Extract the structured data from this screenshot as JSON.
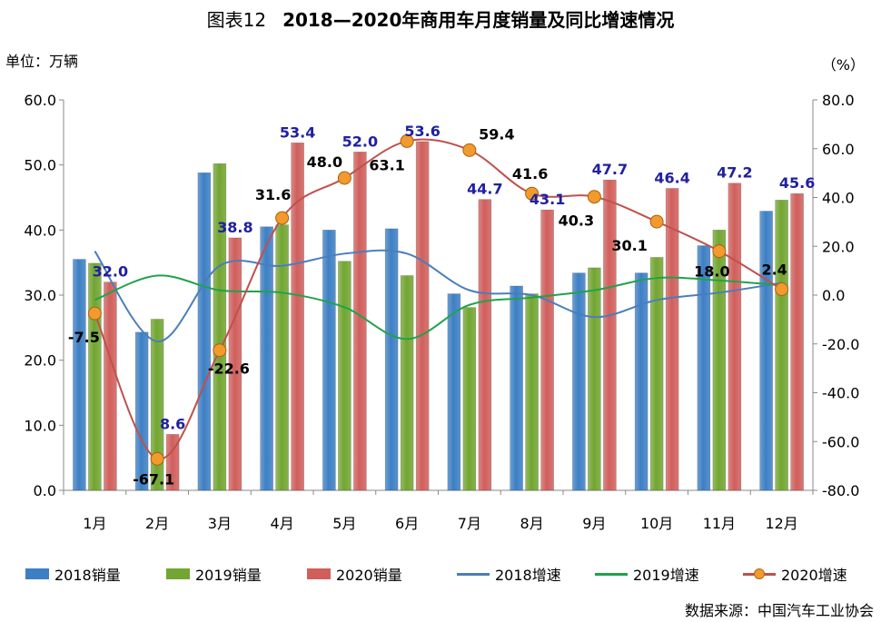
{
  "header": {
    "figure_label": "图表12",
    "title": "2018—2020年商用车月度销量及同比增速情况"
  },
  "left_unit": "单位：万辆",
  "right_unit": "（%）",
  "source": "数据来源：中国汽车工业协会",
  "colors": {
    "bar_2018": "#3d7fc4",
    "bar_2019": "#72a531",
    "bar_2020": "#d05f5c",
    "line_2018": "#4a7ebb",
    "line_2019": "#1fa34a",
    "line_2020": "#c0504d",
    "marker_2020": "#f29a2e",
    "label_blue": "#2020a0"
  },
  "legend": [
    {
      "label": "2018销量",
      "kind": "bar",
      "color": "#3d7fc4"
    },
    {
      "label": "2019销量",
      "kind": "bar",
      "color": "#72a531"
    },
    {
      "label": "2020销量",
      "kind": "bar",
      "color": "#d05f5c"
    },
    {
      "label": "2018增速",
      "kind": "line",
      "color": "#4a7ebb"
    },
    {
      "label": "2019增速",
      "kind": "line",
      "color": "#1fa34a"
    },
    {
      "label": "2020增速",
      "kind": "line-marker",
      "color": "#c0504d"
    }
  ],
  "chart_data": {
    "type": "bar",
    "categories": [
      "1月",
      "2月",
      "3月",
      "4月",
      "5月",
      "6月",
      "7月",
      "8月",
      "9月",
      "10月",
      "11月",
      "12月"
    ],
    "y_left": {
      "range": [
        0,
        60
      ],
      "ticks": [
        "0.0",
        "10.0",
        "20.0",
        "30.0",
        "40.0",
        "50.0",
        "60.0"
      ]
    },
    "y_right": {
      "range": [
        -80,
        80
      ],
      "ticks": [
        "-80.0",
        "-60.0",
        "-40.0",
        "-20.0",
        "0.0",
        "20.0",
        "40.0",
        "60.0",
        "80.0"
      ]
    },
    "bar_series": [
      {
        "name": "2018销量",
        "values": [
          35.5,
          24.3,
          48.8,
          40.5,
          40.0,
          40.2,
          30.2,
          31.4,
          33.4,
          33.4,
          37.6,
          42.9
        ]
      },
      {
        "name": "2019销量",
        "values": [
          34.9,
          26.3,
          50.2,
          40.8,
          35.2,
          33.0,
          28.1,
          30.2,
          34.2,
          35.8,
          40.0,
          44.6
        ]
      },
      {
        "name": "2020销量",
        "values": [
          32.0,
          8.6,
          38.8,
          53.4,
          52.0,
          53.6,
          44.7,
          43.1,
          47.7,
          46.4,
          47.2,
          45.6
        ]
      }
    ],
    "bar_labels_2020": [
      "32.0",
      "8.6",
      "38.8",
      "53.4",
      "52.0",
      "53.6",
      "44.7",
      "43.1",
      "47.7",
      "46.4",
      "47.2",
      "45.6"
    ],
    "line_series": [
      {
        "name": "2018增速",
        "values": [
          18,
          -19,
          12,
          12,
          17,
          17,
          2,
          0,
          -9,
          -2,
          1,
          5
        ]
      },
      {
        "name": "2019增速",
        "values": [
          -2,
          8,
          2,
          1,
          -5,
          -18,
          -4,
          -1,
          2,
          7,
          6,
          4
        ]
      },
      {
        "name": "2020增速",
        "values": [
          -7.5,
          -67.1,
          -22.6,
          31.6,
          48.0,
          63.1,
          59.4,
          41.6,
          40.3,
          30.1,
          18.0,
          2.4
        ]
      }
    ],
    "growth_labels_2020": [
      "-7.5",
      "-67.1",
      "-22.6",
      "31.6",
      "48.0",
      "63.1",
      "59.4",
      "41.6",
      "40.3",
      "30.1",
      "18.0",
      "2.4"
    ]
  }
}
